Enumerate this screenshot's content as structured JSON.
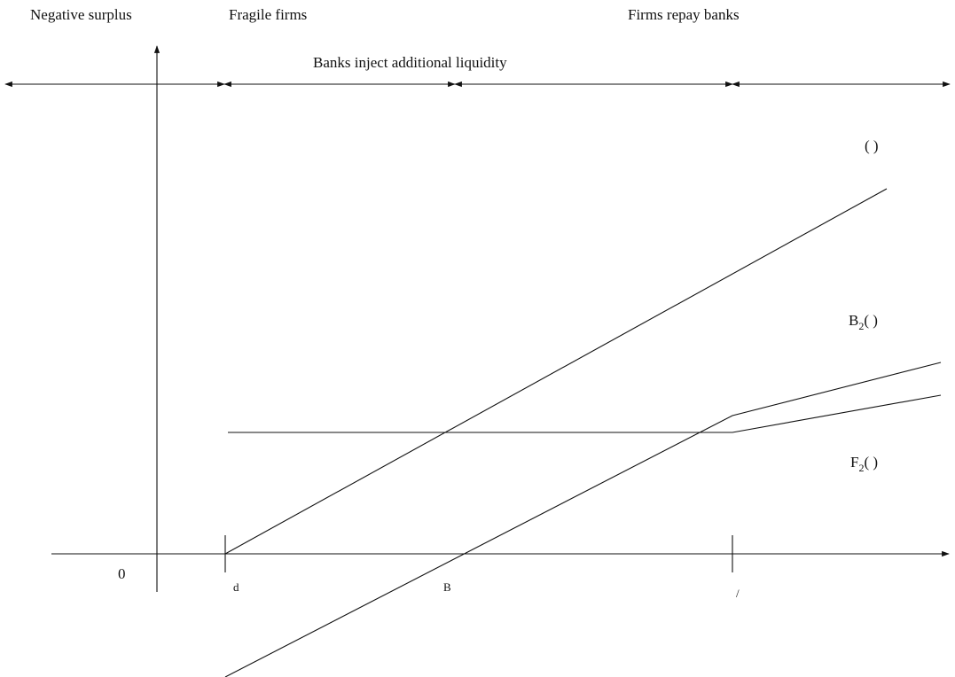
{
  "regions": {
    "negative_surplus": "Negative surplus",
    "fragile_firms": "Fragile firms",
    "banks_inject": "Banks inject additional liquidity",
    "firms_repay": "Firms repay banks"
  },
  "axis": {
    "origin_label": "0",
    "tick_d": "d",
    "tick_B": "B",
    "tick_slash": "/"
  },
  "curves": {
    "top_label": "( )",
    "b2_main": "B",
    "b2_sub": "2",
    "b2_paren": "( )",
    "f2_main": "F",
    "f2_sub": "2",
    "f2_paren": "( )"
  }
}
